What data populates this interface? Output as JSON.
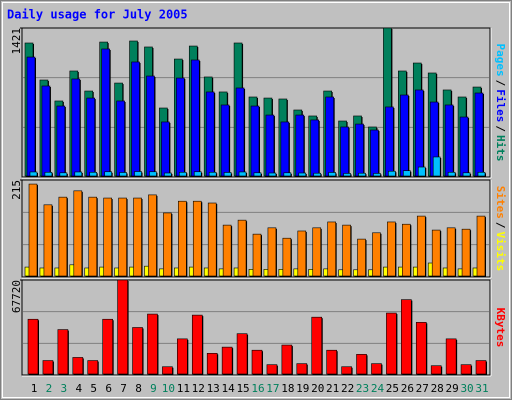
{
  "chart_data": [
    {
      "type": "bar",
      "title": "Daily usage for July 2005",
      "legend_separator": "/",
      "ylim": [
        0,
        1421
      ],
      "yticks": [
        1421
      ],
      "grid": true,
      "series": [
        {
          "name": "Hits",
          "color": "#00805c",
          "values": [
            1278,
            925,
            725,
            1011,
            820,
            1287,
            896,
            1297,
            1240,
            658,
            1125,
            1249,
            954,
            811,
            1278,
            763,
            753,
            744,
            639,
            582,
            820,
            534,
            582,
            477,
            1421,
            1011,
            1087,
            992,
            830,
            763,
            858
          ]
        },
        {
          "name": "Files",
          "color": "#0000ff",
          "values": [
            1144,
            868,
            677,
            935,
            753,
            1221,
            725,
            1097,
            963,
            525,
            944,
            1116,
            811,
            687,
            849,
            677,
            591,
            525,
            591,
            544,
            763,
            477,
            505,
            448,
            668,
            782,
            830,
            715,
            687,
            572,
            801
          ]
        },
        {
          "name": "Pages",
          "color": "#00c0ff",
          "values": [
            48,
            45,
            40,
            48,
            45,
            50,
            43,
            52,
            50,
            38,
            45,
            50,
            45,
            43,
            48,
            40,
            38,
            40,
            38,
            36,
            43,
            34,
            36,
            34,
            55,
            60,
            95,
            191,
            45,
            40,
            45
          ]
        }
      ]
    },
    {
      "type": "bar",
      "legend_separator": "/",
      "ylim": [
        0,
        215
      ],
      "yticks": [
        215
      ],
      "grid": true,
      "series": [
        {
          "name": "Visits",
          "color": "#ffff00",
          "values": [
            22,
            20,
            20,
            27,
            20,
            22,
            20,
            22,
            24,
            18,
            20,
            22,
            20,
            18,
            20,
            17,
            17,
            17,
            18,
            17,
            18,
            16,
            16,
            16,
            22,
            22,
            22,
            31,
            20,
            18,
            20
          ]
        },
        {
          "name": "Sites",
          "color": "#ff8000",
          "values": [
            206,
            160,
            177,
            191,
            177,
            175,
            175,
            175,
            182,
            142,
            168,
            168,
            164,
            115,
            126,
            95,
            109,
            86,
            102,
            109,
            122,
            115,
            84,
            98,
            122,
            117,
            135,
            104,
            109,
            106,
            135
          ]
        }
      ]
    },
    {
      "type": "bar",
      "ylim": [
        0,
        67720
      ],
      "yticks": [
        67720
      ],
      "grid": true,
      "categories": [
        "1",
        "2",
        "3",
        "4",
        "5",
        "6",
        "7",
        "8",
        "9",
        "10",
        "11",
        "12",
        "13",
        "14",
        "15",
        "16",
        "17",
        "18",
        "19",
        "20",
        "21",
        "22",
        "23",
        "24",
        "25",
        "26",
        "27",
        "28",
        "29",
        "30",
        "31"
      ],
      "category_colors": [
        "#000000",
        "#00805c",
        "#00805c",
        "#000000",
        "#000000",
        "#000000",
        "#000000",
        "#000000",
        "#00805c",
        "#00805c",
        "#000000",
        "#000000",
        "#000000",
        "#000000",
        "#000000",
        "#00805c",
        "#00805c",
        "#000000",
        "#000000",
        "#000000",
        "#000000",
        "#000000",
        "#00805c",
        "#00805c",
        "#000000",
        "#000000",
        "#000000",
        "#000000",
        "#000000",
        "#00805c",
        "#00805c"
      ],
      "series": [
        {
          "name": "KBytes",
          "color": "#ff0000",
          "values": [
            39747,
            10300,
            32380,
            12510,
            10300,
            39747,
            67720,
            33860,
            43430,
            5890,
            25760,
            42690,
            15460,
            19870,
            29440,
            17670,
            7360,
            21350,
            8100,
            41220,
            17670,
            5890,
            14720,
            8100,
            44160,
            53730,
            37540,
            6620,
            25760,
            7360,
            10300
          ]
        }
      ]
    }
  ]
}
